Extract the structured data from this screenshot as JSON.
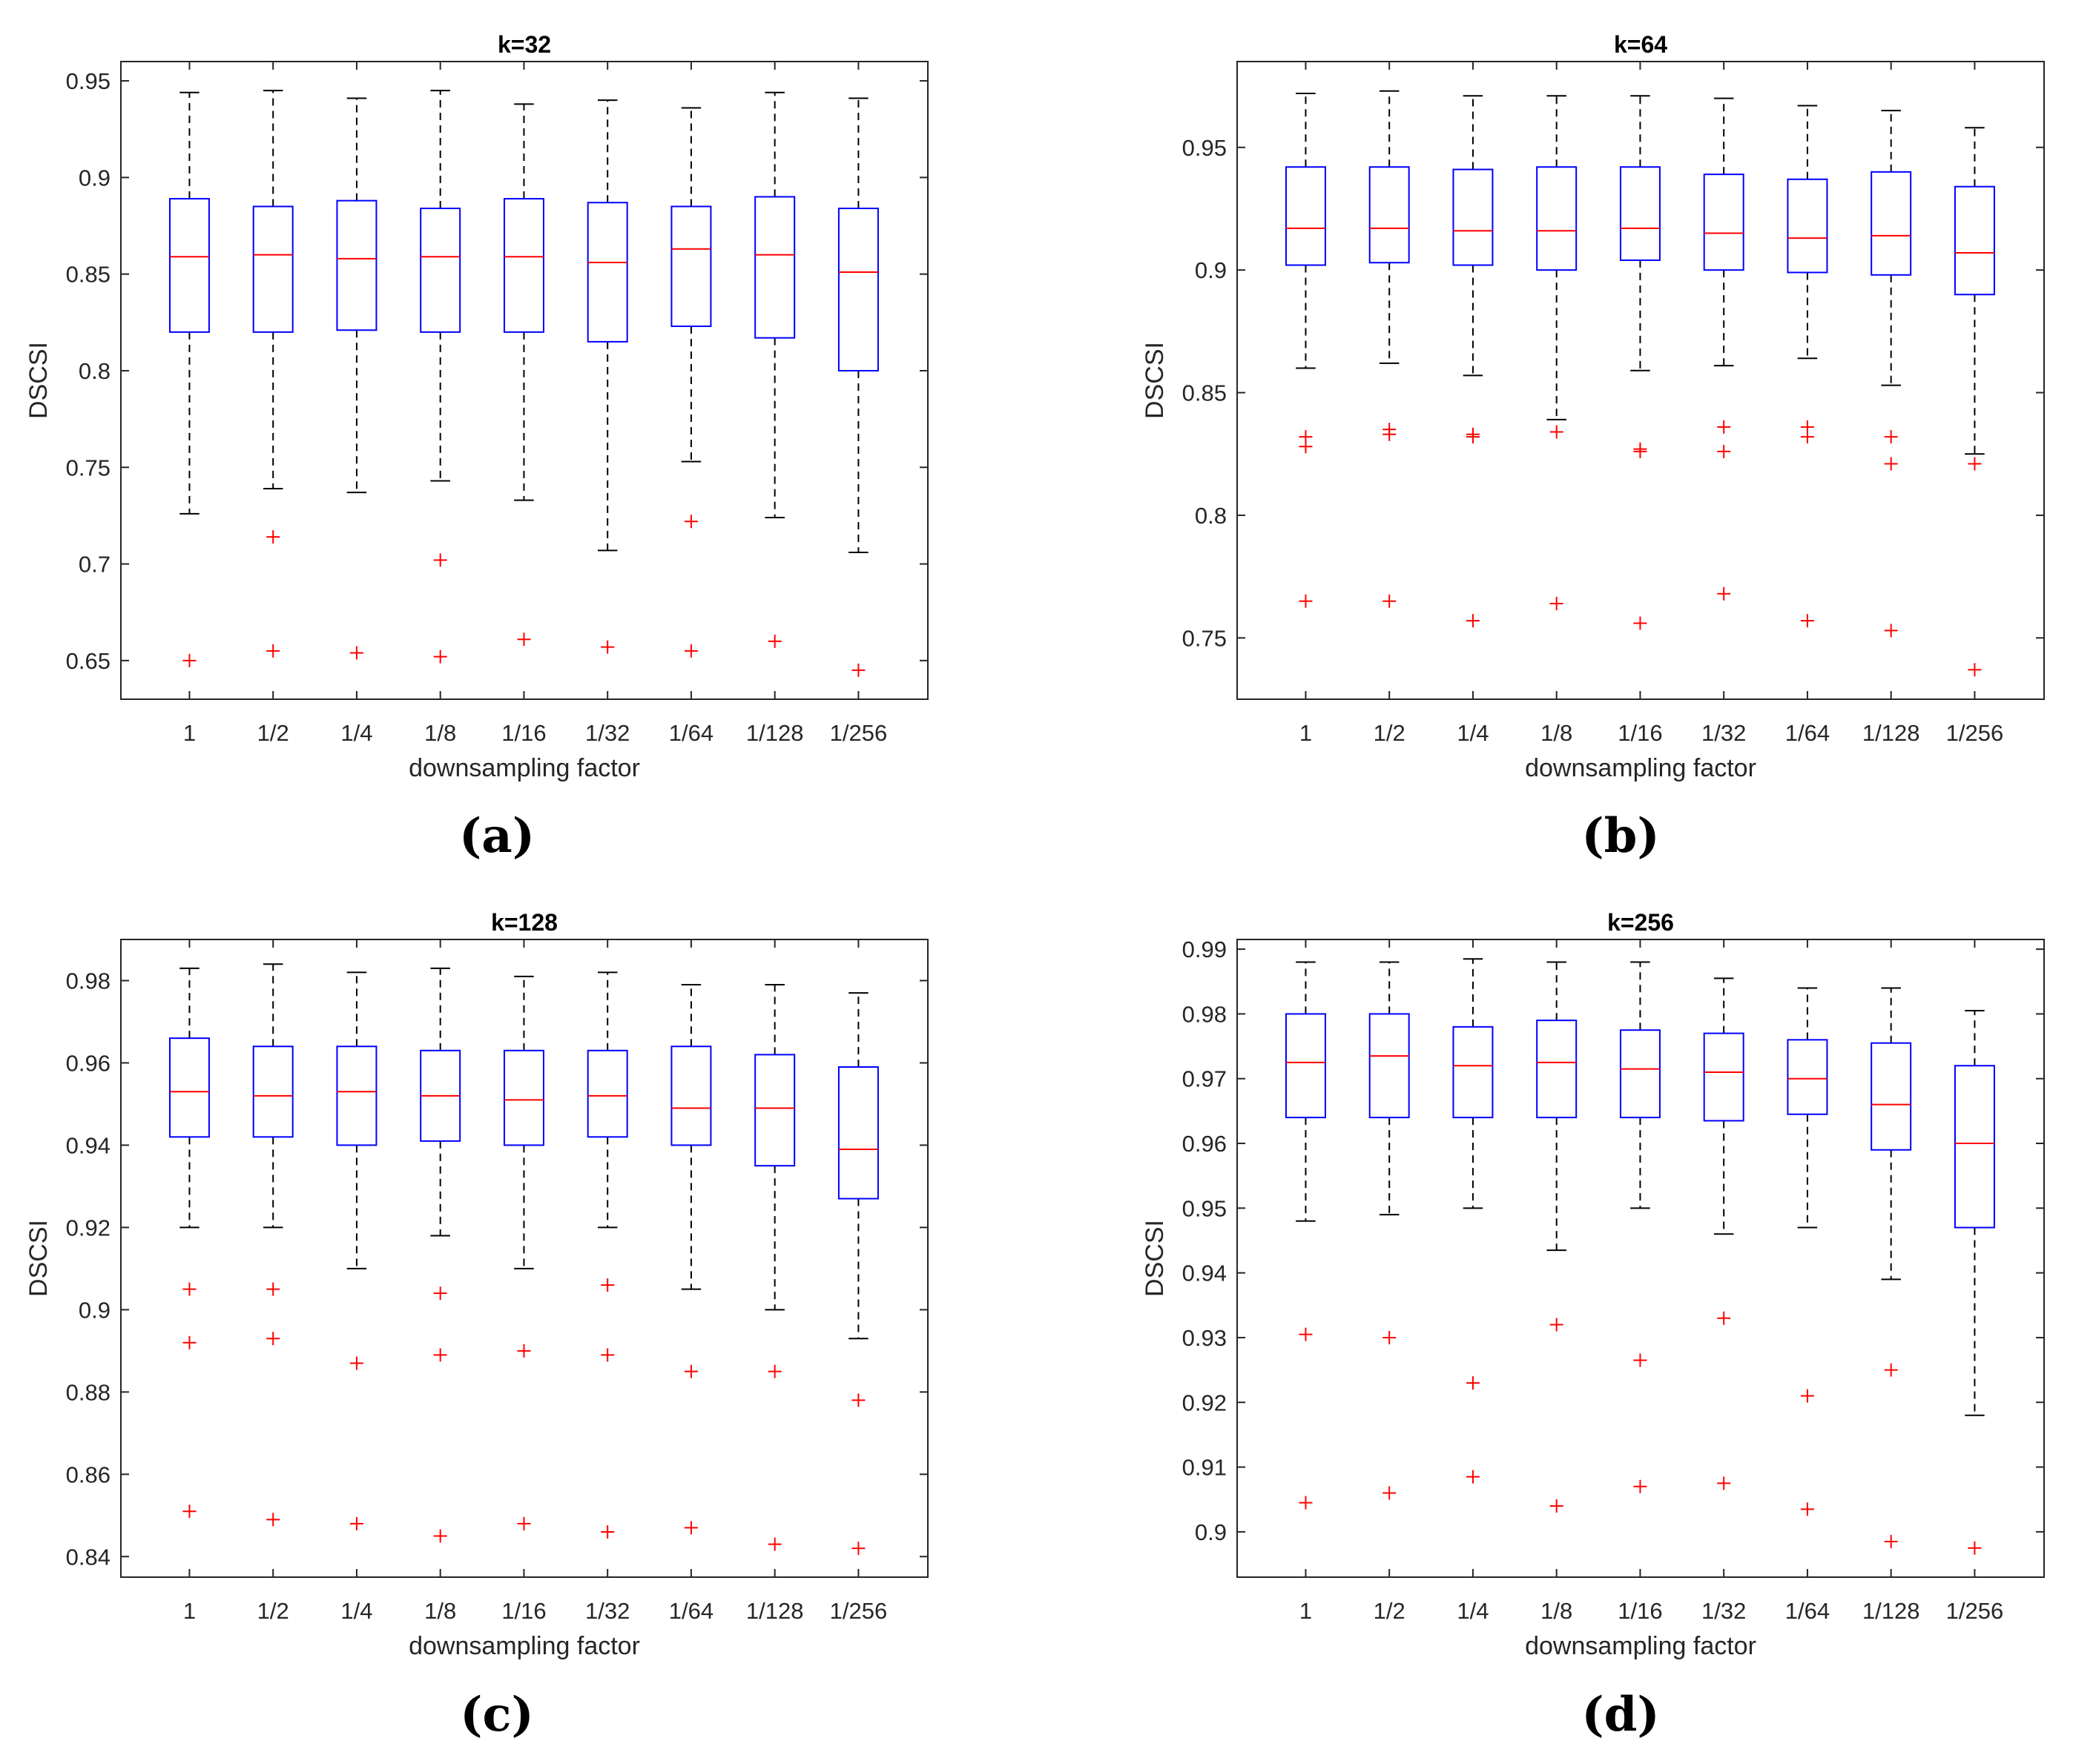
{
  "chart_data": [
    {
      "type": "box",
      "title": "k=32",
      "panel_label": "(a)",
      "xlabel": "downsampling factor",
      "ylabel": "DSCSI",
      "ylim": [
        0.63,
        0.96
      ],
      "yticks": [
        0.65,
        0.7,
        0.75,
        0.8,
        0.85,
        0.9,
        0.95
      ],
      "ytick_labels": [
        "0.65",
        "0.7",
        "0.75",
        "0.8",
        "0.85",
        "0.9",
        "0.95"
      ],
      "categories": [
        "1",
        "1/2",
        "1/4",
        "1/8",
        "1/16",
        "1/32",
        "1/64",
        "1/128",
        "1/256"
      ],
      "boxes": [
        {
          "whisker_low": 0.726,
          "q1": 0.82,
          "median": 0.859,
          "q3": 0.889,
          "whisker_high": 0.944,
          "outliers": [
            0.65
          ]
        },
        {
          "whisker_low": 0.739,
          "q1": 0.82,
          "median": 0.86,
          "q3": 0.885,
          "whisker_high": 0.945,
          "outliers": [
            0.714,
            0.655
          ]
        },
        {
          "whisker_low": 0.737,
          "q1": 0.821,
          "median": 0.858,
          "q3": 0.888,
          "whisker_high": 0.941,
          "outliers": [
            0.654
          ]
        },
        {
          "whisker_low": 0.743,
          "q1": 0.82,
          "median": 0.859,
          "q3": 0.884,
          "whisker_high": 0.945,
          "outliers": [
            0.702,
            0.652
          ]
        },
        {
          "whisker_low": 0.733,
          "q1": 0.82,
          "median": 0.859,
          "q3": 0.889,
          "whisker_high": 0.938,
          "outliers": [
            0.661
          ]
        },
        {
          "whisker_low": 0.707,
          "q1": 0.815,
          "median": 0.856,
          "q3": 0.887,
          "whisker_high": 0.94,
          "outliers": [
            0.657
          ]
        },
        {
          "whisker_low": 0.753,
          "q1": 0.823,
          "median": 0.863,
          "q3": 0.885,
          "whisker_high": 0.936,
          "outliers": [
            0.722,
            0.655
          ]
        },
        {
          "whisker_low": 0.724,
          "q1": 0.817,
          "median": 0.86,
          "q3": 0.89,
          "whisker_high": 0.944,
          "outliers": [
            0.66
          ]
        },
        {
          "whisker_low": 0.706,
          "q1": 0.8,
          "median": 0.851,
          "q3": 0.884,
          "whisker_high": 0.941,
          "outliers": [
            0.645
          ]
        }
      ]
    },
    {
      "type": "box",
      "title": "k=64",
      "panel_label": "(b)",
      "xlabel": "downsampling factor",
      "ylabel": "DSCSI",
      "ylim": [
        0.725,
        0.985
      ],
      "yticks": [
        0.75,
        0.8,
        0.85,
        0.9,
        0.95
      ],
      "ytick_labels": [
        "0.75",
        "0.8",
        "0.85",
        "0.9",
        "0.95"
      ],
      "categories": [
        "1",
        "1/2",
        "1/4",
        "1/8",
        "1/16",
        "1/32",
        "1/64",
        "1/128",
        "1/256"
      ],
      "boxes": [
        {
          "whisker_low": 0.86,
          "q1": 0.902,
          "median": 0.917,
          "q3": 0.942,
          "whisker_high": 0.972,
          "outliers": [
            0.832,
            0.828,
            0.765
          ]
        },
        {
          "whisker_low": 0.862,
          "q1": 0.903,
          "median": 0.917,
          "q3": 0.942,
          "whisker_high": 0.973,
          "outliers": [
            0.835,
            0.833,
            0.765
          ]
        },
        {
          "whisker_low": 0.857,
          "q1": 0.902,
          "median": 0.916,
          "q3": 0.941,
          "whisker_high": 0.971,
          "outliers": [
            0.833,
            0.832,
            0.757
          ]
        },
        {
          "whisker_low": 0.839,
          "q1": 0.9,
          "median": 0.916,
          "q3": 0.942,
          "whisker_high": 0.971,
          "outliers": [
            0.834,
            0.764
          ]
        },
        {
          "whisker_low": 0.859,
          "q1": 0.904,
          "median": 0.917,
          "q3": 0.942,
          "whisker_high": 0.971,
          "outliers": [
            0.827,
            0.826,
            0.756
          ]
        },
        {
          "whisker_low": 0.861,
          "q1": 0.9,
          "median": 0.915,
          "q3": 0.939,
          "whisker_high": 0.97,
          "outliers": [
            0.836,
            0.826,
            0.768
          ]
        },
        {
          "whisker_low": 0.864,
          "q1": 0.899,
          "median": 0.913,
          "q3": 0.937,
          "whisker_high": 0.967,
          "outliers": [
            0.836,
            0.832,
            0.757
          ]
        },
        {
          "whisker_low": 0.853,
          "q1": 0.898,
          "median": 0.914,
          "q3": 0.94,
          "whisker_high": 0.965,
          "outliers": [
            0.832,
            0.821,
            0.753
          ]
        },
        {
          "whisker_low": 0.825,
          "q1": 0.89,
          "median": 0.907,
          "q3": 0.934,
          "whisker_high": 0.958,
          "outliers": [
            0.821,
            0.737
          ]
        }
      ]
    },
    {
      "type": "box",
      "title": "k=128",
      "panel_label": "(c)",
      "xlabel": "downsampling factor",
      "ylabel": "DSCSI",
      "ylim": [
        0.835,
        0.99
      ],
      "yticks": [
        0.84,
        0.86,
        0.88,
        0.9,
        0.92,
        0.94,
        0.96,
        0.98
      ],
      "ytick_labels": [
        "0.84",
        "0.86",
        "0.88",
        "0.9",
        "0.92",
        "0.94",
        "0.96",
        "0.98"
      ],
      "categories": [
        "1",
        "1/2",
        "1/4",
        "1/8",
        "1/16",
        "1/32",
        "1/64",
        "1/128",
        "1/256"
      ],
      "boxes": [
        {
          "whisker_low": 0.92,
          "q1": 0.942,
          "median": 0.953,
          "q3": 0.966,
          "whisker_high": 0.983,
          "outliers": [
            0.905,
            0.892,
            0.851
          ]
        },
        {
          "whisker_low": 0.92,
          "q1": 0.942,
          "median": 0.952,
          "q3": 0.964,
          "whisker_high": 0.984,
          "outliers": [
            0.905,
            0.893,
            0.849
          ]
        },
        {
          "whisker_low": 0.91,
          "q1": 0.94,
          "median": 0.953,
          "q3": 0.964,
          "whisker_high": 0.982,
          "outliers": [
            0.887,
            0.848
          ]
        },
        {
          "whisker_low": 0.918,
          "q1": 0.941,
          "median": 0.952,
          "q3": 0.963,
          "whisker_high": 0.983,
          "outliers": [
            0.904,
            0.889,
            0.845
          ]
        },
        {
          "whisker_low": 0.91,
          "q1": 0.94,
          "median": 0.951,
          "q3": 0.963,
          "whisker_high": 0.981,
          "outliers": [
            0.89,
            0.848
          ]
        },
        {
          "whisker_low": 0.92,
          "q1": 0.942,
          "median": 0.952,
          "q3": 0.963,
          "whisker_high": 0.982,
          "outliers": [
            0.906,
            0.889,
            0.846
          ]
        },
        {
          "whisker_low": 0.905,
          "q1": 0.94,
          "median": 0.949,
          "q3": 0.964,
          "whisker_high": 0.979,
          "outliers": [
            0.885,
            0.847
          ]
        },
        {
          "whisker_low": 0.9,
          "q1": 0.935,
          "median": 0.949,
          "q3": 0.962,
          "whisker_high": 0.979,
          "outliers": [
            0.885,
            0.843
          ]
        },
        {
          "whisker_low": 0.893,
          "q1": 0.927,
          "median": 0.939,
          "q3": 0.959,
          "whisker_high": 0.977,
          "outliers": [
            0.878,
            0.842
          ]
        }
      ]
    },
    {
      "type": "box",
      "title": "k=256",
      "panel_label": "(d)",
      "xlabel": "downsampling factor",
      "ylabel": "DSCSI",
      "ylim": [
        0.893,
        0.9915
      ],
      "yticks": [
        0.9,
        0.91,
        0.92,
        0.93,
        0.94,
        0.95,
        0.96,
        0.97,
        0.98,
        0.99
      ],
      "ytick_labels": [
        "0.9",
        "0.91",
        "0.92",
        "0.93",
        "0.94",
        "0.95",
        "0.96",
        "0.97",
        "0.98",
        "0.99"
      ],
      "categories": [
        "1",
        "1/2",
        "1/4",
        "1/8",
        "1/16",
        "1/32",
        "1/64",
        "1/128",
        "1/256"
      ],
      "boxes": [
        {
          "whisker_low": 0.948,
          "q1": 0.964,
          "median": 0.9725,
          "q3": 0.98,
          "whisker_high": 0.988,
          "outliers": [
            0.9305,
            0.9045
          ]
        },
        {
          "whisker_low": 0.949,
          "q1": 0.964,
          "median": 0.9735,
          "q3": 0.98,
          "whisker_high": 0.988,
          "outliers": [
            0.93,
            0.906
          ]
        },
        {
          "whisker_low": 0.95,
          "q1": 0.964,
          "median": 0.972,
          "q3": 0.978,
          "whisker_high": 0.9885,
          "outliers": [
            0.923,
            0.9085
          ]
        },
        {
          "whisker_low": 0.9435,
          "q1": 0.964,
          "median": 0.9725,
          "q3": 0.979,
          "whisker_high": 0.988,
          "outliers": [
            0.932,
            0.904
          ]
        },
        {
          "whisker_low": 0.95,
          "q1": 0.964,
          "median": 0.9715,
          "q3": 0.9775,
          "whisker_high": 0.988,
          "outliers": [
            0.9265,
            0.907
          ]
        },
        {
          "whisker_low": 0.946,
          "q1": 0.9635,
          "median": 0.971,
          "q3": 0.977,
          "whisker_high": 0.9855,
          "outliers": [
            0.933,
            0.9075
          ]
        },
        {
          "whisker_low": 0.947,
          "q1": 0.9645,
          "median": 0.97,
          "q3": 0.976,
          "whisker_high": 0.984,
          "outliers": [
            0.921,
            0.9035
          ]
        },
        {
          "whisker_low": 0.939,
          "q1": 0.959,
          "median": 0.966,
          "q3": 0.9755,
          "whisker_high": 0.984,
          "outliers": [
            0.925,
            0.8985
          ]
        },
        {
          "whisker_low": 0.918,
          "q1": 0.947,
          "median": 0.96,
          "q3": 0.972,
          "whisker_high": 0.9805,
          "outliers": [
            0.8975
          ]
        }
      ]
    }
  ]
}
